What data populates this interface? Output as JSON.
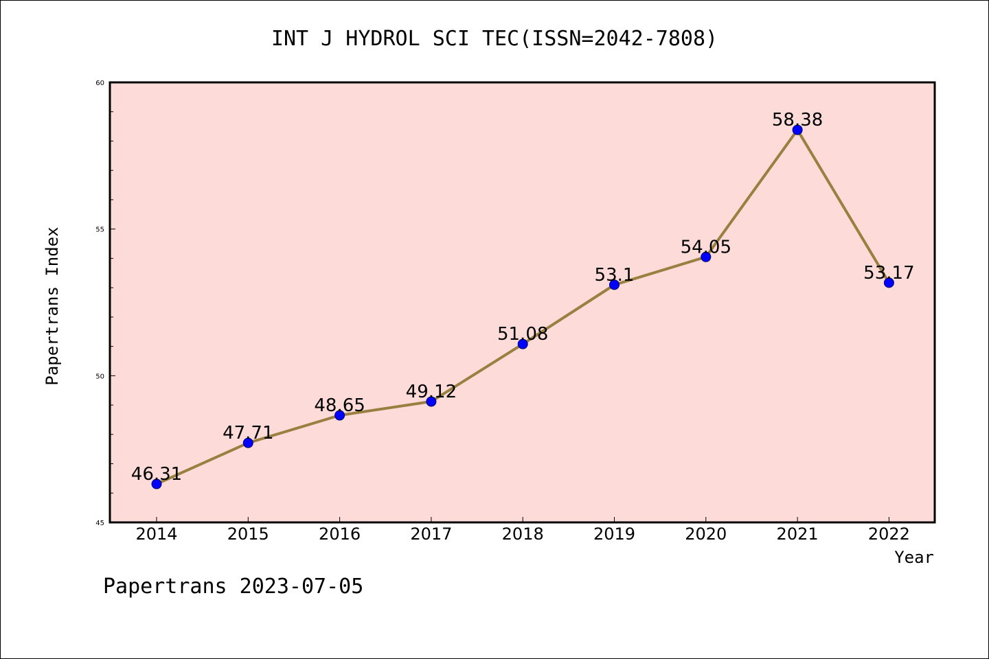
{
  "chart_data": {
    "type": "line",
    "title": "INT J HYDROL SCI TEC(ISSN=2042-7808)",
    "xlabel": "Year",
    "ylabel": "Papertrans Index",
    "categories": [
      "2014",
      "2015",
      "2016",
      "2017",
      "2018",
      "2019",
      "2020",
      "2021",
      "2022"
    ],
    "series": [
      {
        "values": [
          46.31,
          47.71,
          48.65,
          49.12,
          51.08,
          53.1,
          54.05,
          58.38,
          53.17
        ],
        "labels": [
          "46.31",
          "47.71",
          "48.65",
          "49.12",
          "51.08",
          "53.1",
          "54.05",
          "58.38",
          "53.17"
        ]
      }
    ],
    "ylim": [
      45,
      60
    ],
    "yticks": [
      "45",
      "50",
      "55",
      "60"
    ],
    "yminor_step": 1,
    "grid": false,
    "colors": {
      "plot_background": "#fddbd8",
      "line": "#9a8040",
      "marker": "#0000ff"
    }
  },
  "footer": {
    "text": "Papertrans 2023-07-05"
  }
}
